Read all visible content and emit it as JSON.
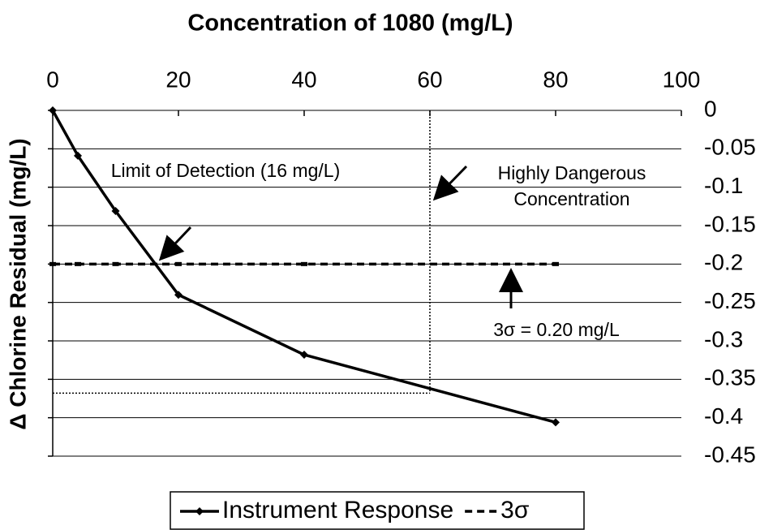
{
  "chart_data": {
    "type": "line",
    "title": "Concentration of 1080 (mg/L)",
    "y_label": "Δ Chlorine Residual (mg/L)",
    "xlim": [
      0,
      100
    ],
    "xticks": [
      0,
      20,
      40,
      60,
      80,
      100
    ],
    "ylim": [
      -0.45,
      0
    ],
    "yticks": [
      0,
      -0.05,
      -0.1,
      -0.15,
      -0.2,
      -0.25,
      -0.3,
      -0.35,
      -0.4,
      -0.45
    ],
    "grid": true,
    "series": [
      {
        "name": "Instrument Response",
        "color": "#000000",
        "style": "solid",
        "x": [
          0,
          4,
          10,
          20,
          40,
          80
        ],
        "values": [
          0,
          -0.059,
          -0.131,
          -0.24,
          -0.318,
          -0.406
        ]
      },
      {
        "name": "3σ",
        "color": "#000000",
        "style": "dashed",
        "x": [
          0,
          4,
          10,
          20,
          40,
          80
        ],
        "values": [
          -0.2,
          -0.2,
          -0.2,
          -0.2,
          -0.2,
          -0.2
        ]
      }
    ],
    "reference_lines": {
      "x": 60,
      "y": -0.368
    },
    "annotations": [
      {
        "lines": [
          "Limit of Detection (16 mg/L)"
        ]
      },
      {
        "lines": [
          "Highly Dangerous",
          "Concentration"
        ]
      },
      {
        "lines": [
          "3σ = 0.20 mg/L"
        ]
      }
    ],
    "legend": "bottom"
  }
}
